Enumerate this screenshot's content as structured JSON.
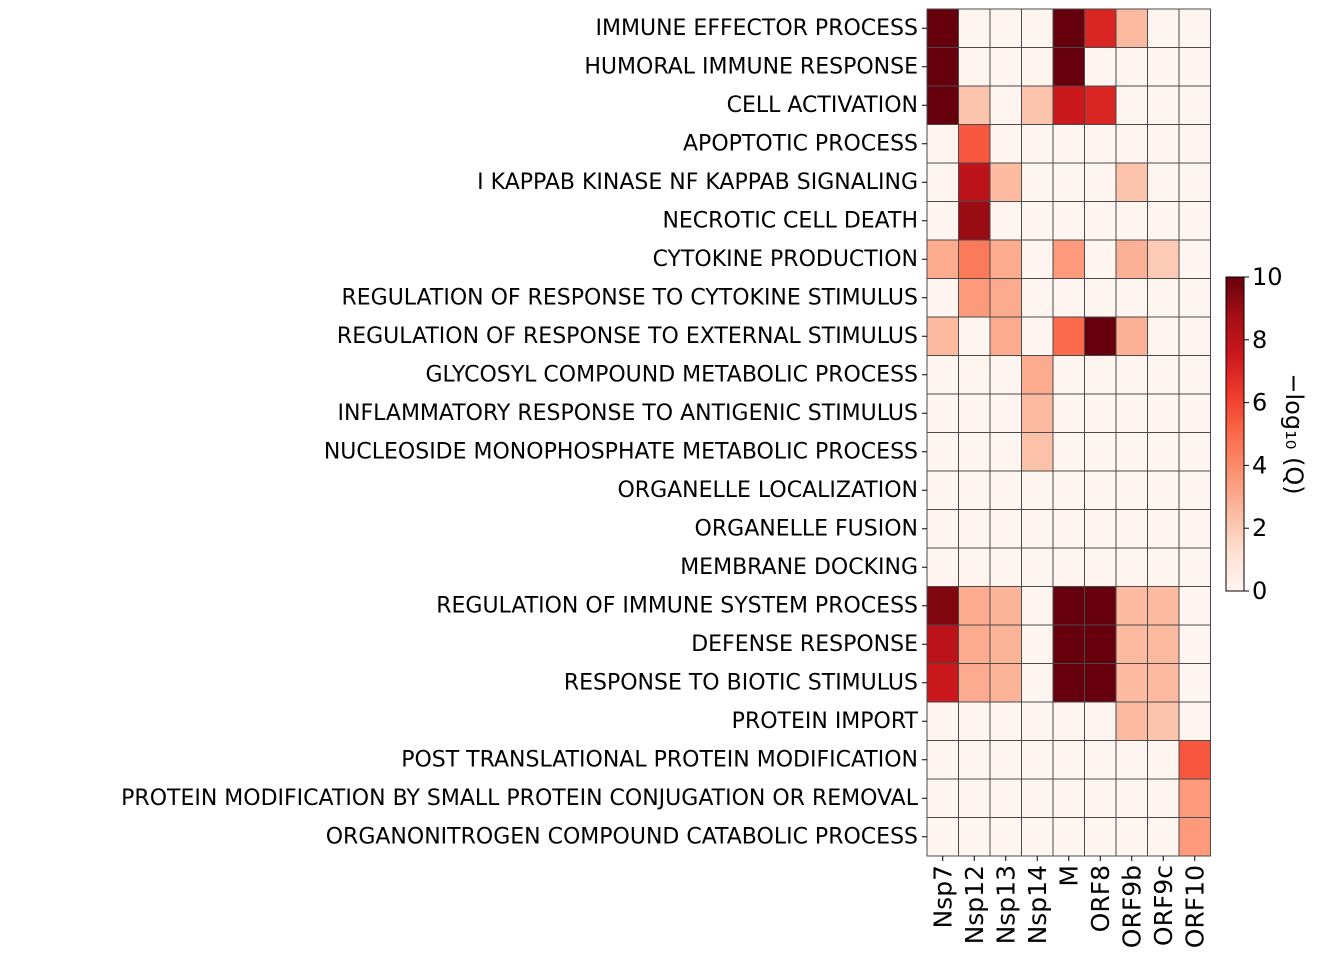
{
  "chart_data": {
    "type": "heatmap",
    "title": "",
    "xlabel": "",
    "ylabel": "",
    "columns": [
      "Nsp7",
      "Nsp12",
      "Nsp13",
      "Nsp14",
      "M",
      "ORF8",
      "ORF9b",
      "ORF9c",
      "ORF10"
    ],
    "rows": [
      "IMMUNE EFFECTOR PROCESS",
      "HUMORAL IMMUNE RESPONSE",
      "CELL ACTIVATION",
      "APOPTOTIC PROCESS",
      "I KAPPAB KINASE NF KAPPAB SIGNALING",
      "NECROTIC CELL DEATH",
      "CYTOKINE PRODUCTION",
      "REGULATION OF RESPONSE TO CYTOKINE STIMULUS",
      "REGULATION OF RESPONSE TO EXTERNAL STIMULUS",
      "GLYCOSYL COMPOUND METABOLIC PROCESS",
      "INFLAMMATORY RESPONSE TO ANTIGENIC STIMULUS",
      "NUCLEOSIDE MONOPHOSPHATE METABOLIC PROCESS",
      "ORGANELLE LOCALIZATION",
      "ORGANELLE FUSION",
      "MEMBRANE DOCKING",
      "REGULATION OF IMMUNE SYSTEM PROCESS",
      "DEFENSE RESPONSE",
      "RESPONSE TO BIOTIC STIMULUS",
      "PROTEIN IMPORT",
      "POST TRANSLATIONAL PROTEIN MODIFICATION",
      "PROTEIN MODIFICATION BY SMALL PROTEIN CONJUGATION OR REMOVAL",
      "ORGANONITROGEN COMPOUND CATABOLIC PROCESS"
    ],
    "values": [
      [
        10,
        0,
        0,
        0,
        10,
        7,
        2.5,
        0,
        0
      ],
      [
        10,
        0,
        0,
        0,
        10,
        0,
        0,
        0,
        0
      ],
      [
        10,
        2.2,
        0,
        2.2,
        7.5,
        7,
        0,
        0,
        0
      ],
      [
        0,
        5.5,
        0,
        0,
        0,
        0,
        0,
        0,
        0
      ],
      [
        0,
        8,
        2.5,
        0,
        0,
        0,
        2.2,
        0,
        0
      ],
      [
        0,
        9,
        0,
        0,
        0,
        0,
        0,
        0,
        0
      ],
      [
        3,
        4.5,
        3,
        0,
        3.5,
        0,
        2.8,
        2,
        0
      ],
      [
        0,
        3.5,
        3,
        0,
        0,
        0,
        0,
        0,
        0
      ],
      [
        2.5,
        0,
        3,
        0,
        5,
        10,
        2.8,
        0,
        0
      ],
      [
        0,
        0,
        0,
        3,
        0,
        0,
        0,
        0,
        0
      ],
      [
        0,
        0,
        0,
        2.5,
        0,
        0,
        0,
        0,
        0
      ],
      [
        0,
        0,
        0,
        2.3,
        0,
        0,
        0,
        0,
        0
      ],
      [
        0,
        0,
        0,
        0,
        0,
        0,
        0,
        0,
        0
      ],
      [
        0,
        0,
        0,
        0,
        0,
        0,
        0,
        0,
        0
      ],
      [
        0,
        0,
        0,
        0,
        0,
        0,
        0,
        0,
        0
      ],
      [
        9.5,
        3,
        2.7,
        0,
        10,
        10,
        2.5,
        2.5,
        0
      ],
      [
        8,
        3,
        2.7,
        0,
        10,
        10,
        2.5,
        2.5,
        0
      ],
      [
        7.5,
        3,
        2.7,
        0,
        10,
        10,
        2.5,
        2.5,
        0
      ],
      [
        0,
        0,
        0,
        0,
        0,
        0,
        2.5,
        2.2,
        0
      ],
      [
        0,
        0,
        0,
        0,
        0,
        0,
        0,
        0,
        5.5
      ],
      [
        0,
        0,
        0,
        0,
        0,
        0,
        0,
        0,
        3.5
      ],
      [
        0,
        0,
        0,
        0,
        0,
        0,
        0,
        0,
        3.5
      ]
    ],
    "vmin": 0,
    "vmax": 10,
    "colormap": "Reds",
    "colorbar": {
      "label": "−log₁₀ (Q)",
      "ticks": [
        0,
        2,
        4,
        6,
        8,
        10
      ],
      "placement": "right"
    },
    "cell_edge_color": "#4a4a4a"
  }
}
